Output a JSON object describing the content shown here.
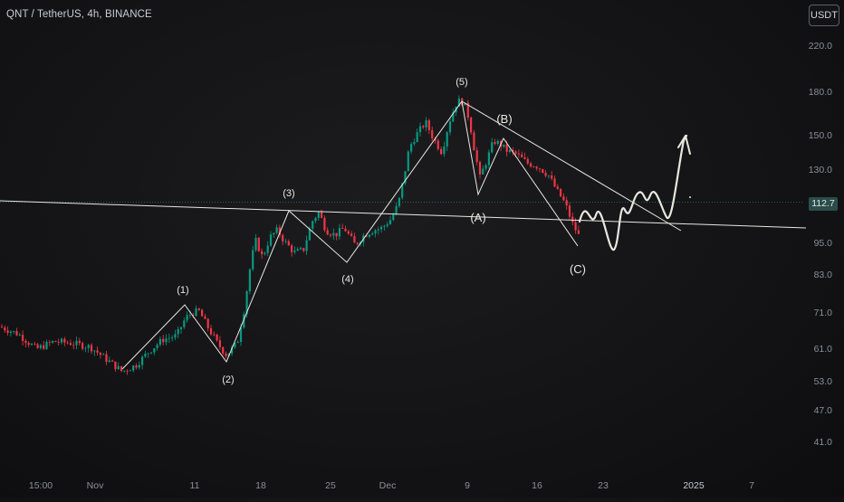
{
  "header": {
    "symbol": "QNT / TetherUS, 4h, BINANCE",
    "currency": "USDT"
  },
  "last_price_label": "112.7",
  "colors": {
    "up": "#089981",
    "down": "#f23645",
    "annotation": "#e8e8e0",
    "price_line": "#26a69a"
  },
  "chart_data": {
    "type": "candlestick",
    "y_scale": "log",
    "y_ticks": [
      "220.0",
      "180.0",
      "150.0",
      "130.0",
      "112.7",
      "95.0",
      "83.0",
      "71.0",
      "61.0",
      "53.0",
      "47.0",
      "41.0"
    ],
    "x_ticks": [
      "15:00",
      "Nov",
      "11",
      "18",
      "25",
      "Dec",
      "9",
      "16",
      "23",
      "2025",
      "7"
    ],
    "current_price": 112.7,
    "wave_labels": [
      "(1)",
      "(2)",
      "(3)",
      "(4)",
      "(5)",
      "(A)",
      "(B)",
      "(C)"
    ],
    "price_path": [
      [
        0,
        66.5
      ],
      [
        20,
        64.5
      ],
      [
        40,
        60.5
      ],
      [
        60,
        62.5
      ],
      [
        80,
        62
      ],
      [
        100,
        61
      ],
      [
        120,
        57.5
      ],
      [
        135,
        55
      ],
      [
        150,
        56.5
      ],
      [
        165,
        60
      ],
      [
        180,
        63
      ],
      [
        195,
        64
      ],
      [
        205,
        69
      ],
      [
        212,
        70.5
      ],
      [
        220,
        71
      ],
      [
        228,
        67
      ],
      [
        240,
        62
      ],
      [
        250,
        59
      ],
      [
        262,
        62
      ],
      [
        270,
        72
      ],
      [
        276,
        85
      ],
      [
        282,
        96
      ],
      [
        290,
        89
      ],
      [
        298,
        97
      ],
      [
        306,
        100
      ],
      [
        315,
        95
      ],
      [
        325,
        91
      ],
      [
        335,
        92
      ],
      [
        345,
        104
      ],
      [
        352,
        108
      ],
      [
        360,
        100
      ],
      [
        370,
        98
      ],
      [
        380,
        101
      ],
      [
        392,
        94
      ],
      [
        402,
        98
      ],
      [
        412,
        100
      ],
      [
        422,
        101
      ],
      [
        432,
        105
      ],
      [
        440,
        112
      ],
      [
        446,
        125
      ],
      [
        452,
        142
      ],
      [
        460,
        150
      ],
      [
        470,
        158
      ],
      [
        478,
        148
      ],
      [
        488,
        139
      ],
      [
        496,
        158
      ],
      [
        505,
        173
      ],
      [
        512,
        172
      ],
      [
        518,
        160
      ],
      [
        524,
        140
      ],
      [
        530,
        125
      ],
      [
        538,
        135
      ],
      [
        545,
        146
      ],
      [
        552,
        144
      ],
      [
        560,
        140
      ],
      [
        570,
        138
      ],
      [
        582,
        133
      ],
      [
        594,
        131
      ],
      [
        606,
        126
      ],
      [
        614,
        119
      ],
      [
        624,
        112
      ],
      [
        632,
        103
      ],
      [
        640,
        97
      ]
    ]
  }
}
